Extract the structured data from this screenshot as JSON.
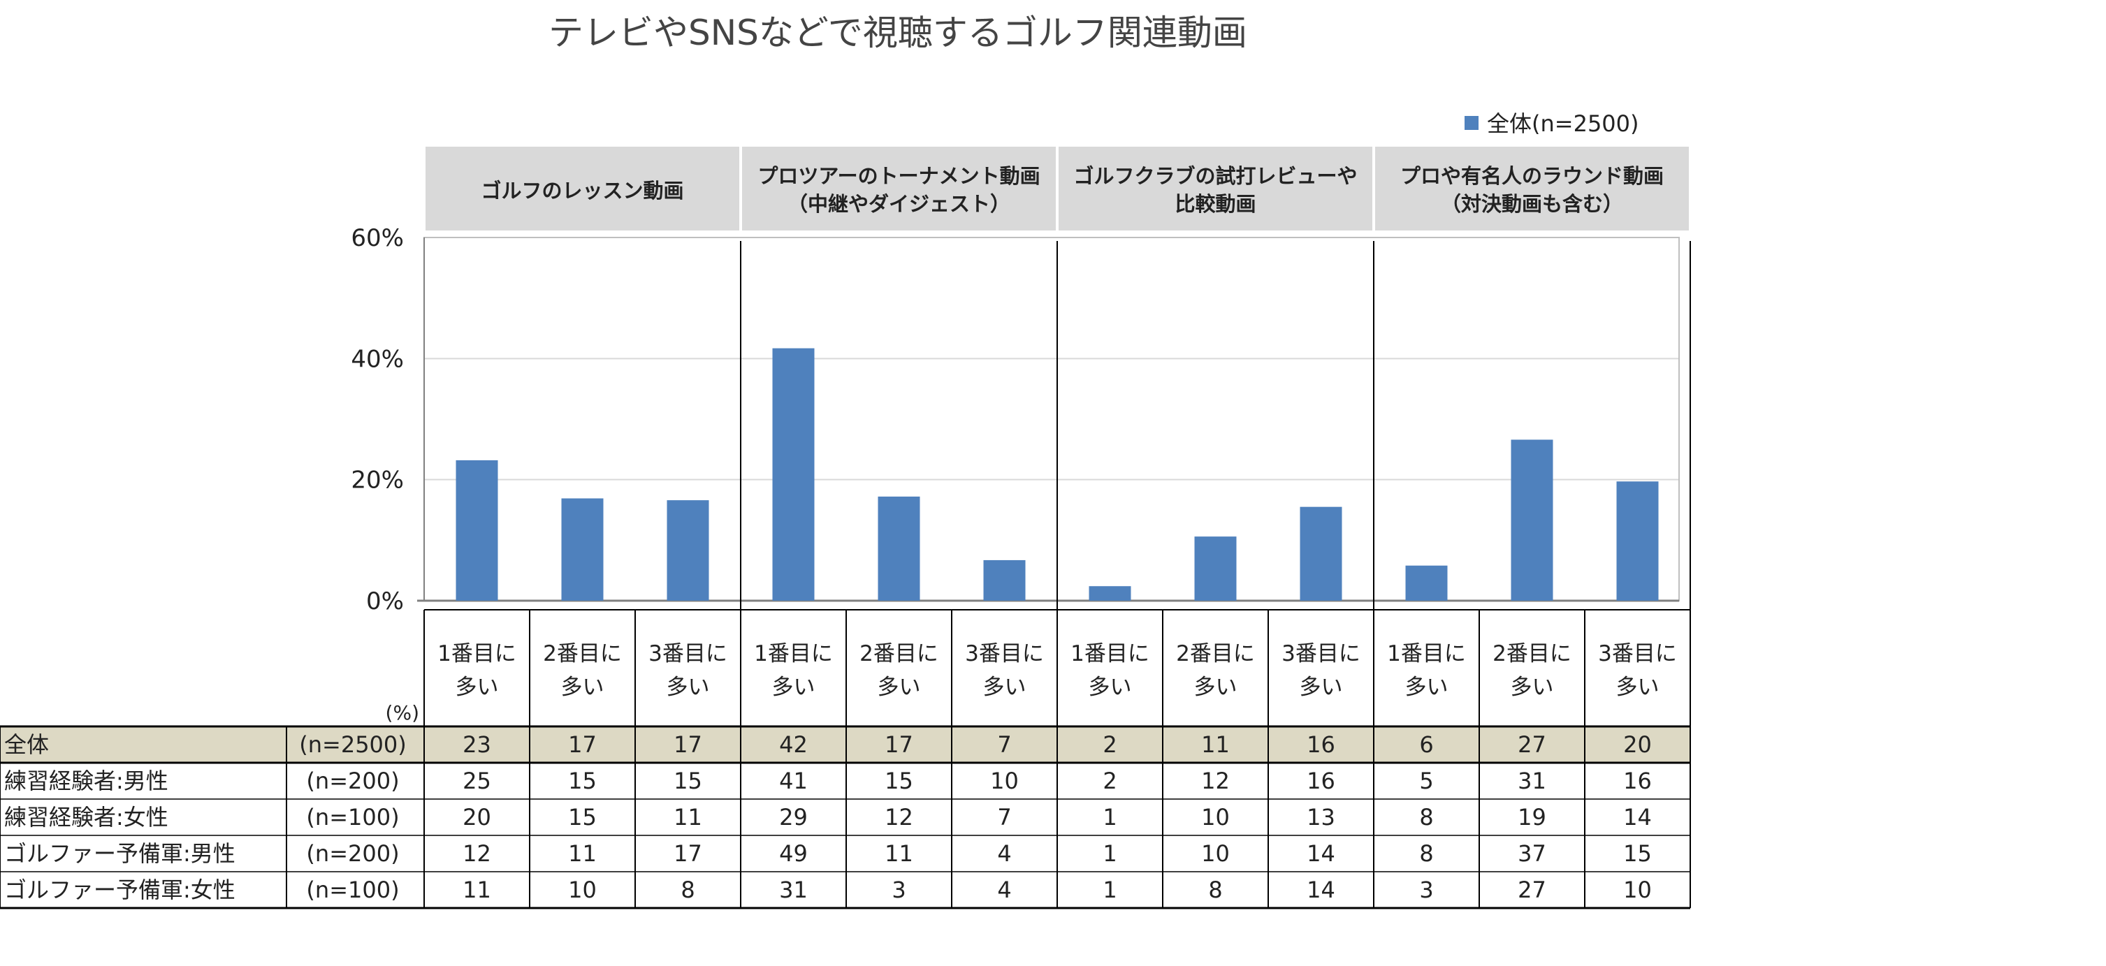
{
  "chart_data": {
    "type": "bar",
    "title": "テレビやSNSなどで視聴するゴルフ関連動画",
    "legend": {
      "label": "全体(n=2500)",
      "position": "top-right",
      "color": "#4F81BD"
    },
    "ylim": [
      0,
      60
    ],
    "yticks": [
      "60%",
      "40%",
      "20%",
      "0%"
    ],
    "ytick_values": [
      60,
      40,
      20,
      0
    ],
    "unit_label": "(%)",
    "groups": [
      {
        "label_lines": [
          "ゴルフのレッスン動画"
        ]
      },
      {
        "label_lines": [
          "プロツアーのトーナメント動画",
          "（中継やダイジェスト）"
        ]
      },
      {
        "label_lines": [
          "ゴルフクラブの試打レビューや",
          "比較動画"
        ]
      },
      {
        "label_lines": [
          "プロや有名人のラウンド動画",
          "（対決動画も含む）"
        ]
      }
    ],
    "categories": [
      [
        "1番目に",
        "多い"
      ],
      [
        "2番目に",
        "多い"
      ],
      [
        "3番目に",
        "多い"
      ],
      [
        "1番目に",
        "多い"
      ],
      [
        "2番目に",
        "多い"
      ],
      [
        "3番目に",
        "多い"
      ],
      [
        "1番目に",
        "多い"
      ],
      [
        "2番目に",
        "多い"
      ],
      [
        "3番目に",
        "多い"
      ],
      [
        "1番目に",
        "多い"
      ],
      [
        "2番目に",
        "多い"
      ],
      [
        "3番目に",
        "多い"
      ]
    ],
    "series": [
      {
        "name": "全体(n=2500)",
        "values": [
          23.2,
          16.9,
          16.6,
          41.7,
          17.2,
          6.7,
          2.4,
          10.6,
          15.5,
          5.8,
          26.6,
          19.7
        ]
      }
    ],
    "table": {
      "rows": [
        {
          "label": "全体",
          "n": "(n=2500)",
          "values": [
            "23",
            "17",
            "17",
            "42",
            "17",
            "7",
            "2",
            "11",
            "16",
            "6",
            "27",
            "20"
          ],
          "highlight": true
        },
        {
          "label": "練習経験者:男性",
          "n": "(n=200)",
          "values": [
            "25",
            "15",
            "15",
            "41",
            "15",
            "10",
            "2",
            "12",
            "16",
            "5",
            "31",
            "16"
          ],
          "highlight": false
        },
        {
          "label": "練習経験者:女性",
          "n": "(n=100)",
          "values": [
            "20",
            "15",
            "11",
            "29",
            "12",
            "7",
            "1",
            "10",
            "13",
            "8",
            "19",
            "14"
          ],
          "highlight": false
        },
        {
          "label": "ゴルファー予備軍:男性",
          "n": "(n=200)",
          "values": [
            "12",
            "11",
            "17",
            "49",
            "11",
            "4",
            "1",
            "10",
            "14",
            "8",
            "37",
            "15"
          ],
          "highlight": false
        },
        {
          "label": "ゴルファー予備軍:女性",
          "n": "(n=100)",
          "values": [
            "11",
            "10",
            "8",
            "31",
            "3",
            "4",
            "1",
            "8",
            "14",
            "3",
            "27",
            "10"
          ],
          "highlight": false
        }
      ]
    }
  },
  "colors": {
    "bar": "#4F81BD",
    "header_bg": "#D9D9D9",
    "highlight_row": "#DDD9C4",
    "grid": "#D9D9D9"
  }
}
